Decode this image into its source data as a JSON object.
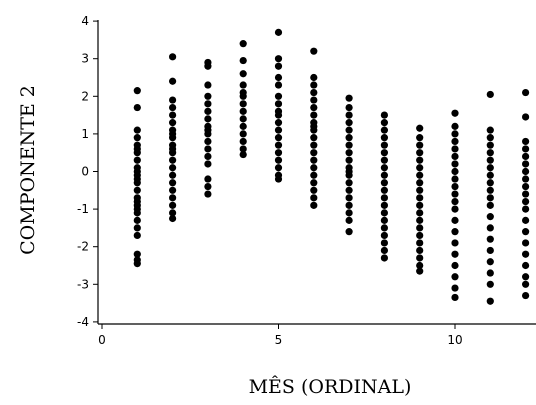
{
  "chart_data": {
    "type": "scatter",
    "title": "",
    "xlabel": "MÊS (ORDINAL)",
    "ylabel": "COMPONENTE 2",
    "xlim": [
      -0.2,
      12.2
    ],
    "ylim": [
      -4.1,
      4.1
    ],
    "x_ticks": [
      0,
      5,
      10
    ],
    "y_ticks": [
      4,
      3,
      2,
      1,
      0,
      -1,
      -2,
      -3,
      -4
    ],
    "grid": false,
    "legend": "none",
    "marker_color": "#000000",
    "series": [
      {
        "x": [
          1,
          1,
          1,
          1,
          1,
          1,
          1,
          1,
          1,
          1,
          1,
          1,
          1,
          1,
          1,
          1,
          1,
          1,
          1,
          1,
          1,
          1,
          1,
          1,
          1,
          2,
          2,
          2,
          2,
          2,
          2,
          2,
          2,
          2,
          2,
          2,
          2,
          2,
          2,
          2,
          2,
          2,
          2,
          2,
          2,
          2,
          3,
          3,
          3,
          3,
          3,
          3,
          3,
          3,
          3,
          3,
          3,
          3,
          3,
          3,
          3,
          3,
          3,
          4,
          4,
          4,
          4,
          4,
          4,
          4,
          4,
          4,
          4,
          4,
          4,
          4,
          4,
          5,
          5,
          5,
          5,
          5,
          5,
          5,
          5,
          5,
          5,
          5,
          5,
          5,
          5,
          5,
          5,
          5,
          5,
          6,
          6,
          6,
          6,
          6,
          6,
          6,
          6,
          6,
          6,
          6,
          6,
          6,
          6,
          6,
          6,
          6,
          6,
          6,
          6,
          7,
          7,
          7,
          7,
          7,
          7,
          7,
          7,
          7,
          7,
          7,
          7,
          7,
          7,
          7,
          7,
          7,
          7,
          7,
          8,
          8,
          8,
          8,
          8,
          8,
          8,
          8,
          8,
          8,
          8,
          8,
          8,
          8,
          8,
          8,
          8,
          8,
          8,
          8,
          9,
          9,
          9,
          9,
          9,
          9,
          9,
          9,
          9,
          9,
          9,
          9,
          9,
          9,
          9,
          9,
          9,
          9,
          9,
          9,
          10,
          10,
          10,
          10,
          10,
          10,
          10,
          10,
          10,
          10,
          10,
          10,
          10,
          10,
          10,
          10,
          10,
          10,
          10,
          10,
          10,
          11,
          11,
          11,
          11,
          11,
          11,
          11,
          11,
          11,
          11,
          11,
          11,
          11,
          11,
          11,
          11,
          11,
          11,
          11,
          11,
          12,
          12,
          12,
          12,
          12,
          12,
          12,
          12,
          12,
          12,
          12,
          12,
          12,
          12,
          12,
          12,
          12,
          12,
          12,
          12
        ],
        "y": [
          2.15,
          1.7,
          1.1,
          0.9,
          0.7,
          0.5,
          0.3,
          0.1,
          -0.1,
          -0.3,
          -0.5,
          -0.7,
          -0.9,
          -1.1,
          -1.3,
          -1.5,
          -1.7,
          -2.2,
          -2.35,
          -2.45,
          0.0,
          -0.2,
          -0.8,
          -1.0,
          0.6,
          3.05,
          2.4,
          1.9,
          1.7,
          1.5,
          1.3,
          1.1,
          0.9,
          0.7,
          0.5,
          0.3,
          0.1,
          -0.1,
          -0.3,
          -0.5,
          -0.7,
          -0.9,
          -1.1,
          -1.25,
          0.6,
          1.0,
          2.9,
          2.8,
          2.3,
          2.0,
          1.8,
          1.6,
          1.4,
          1.2,
          1.0,
          0.8,
          0.6,
          0.4,
          0.2,
          -0.2,
          -0.4,
          -0.6,
          1.1,
          3.4,
          2.95,
          2.6,
          2.3,
          2.0,
          1.8,
          1.6,
          1.4,
          1.2,
          1.0,
          0.8,
          0.6,
          0.45,
          2.1,
          3.7,
          3.0,
          2.8,
          2.5,
          2.3,
          2.0,
          1.8,
          1.5,
          1.3,
          1.1,
          0.9,
          0.7,
          0.5,
          0.3,
          0.1,
          -0.1,
          -0.2,
          1.6,
          3.2,
          2.5,
          2.3,
          2.1,
          1.9,
          1.7,
          1.5,
          1.3,
          1.1,
          0.9,
          0.7,
          0.5,
          0.3,
          0.1,
          -0.1,
          -0.3,
          -0.5,
          -0.7,
          -0.9,
          1.2,
          1.95,
          1.7,
          1.5,
          1.3,
          1.1,
          0.9,
          0.7,
          0.5,
          0.3,
          0.1,
          -0.1,
          -0.3,
          -0.5,
          -0.7,
          -0.9,
          -1.1,
          -1.3,
          -1.6,
          0.0,
          1.5,
          1.3,
          1.1,
          0.9,
          0.7,
          0.5,
          0.3,
          0.1,
          -0.1,
          -0.3,
          -0.5,
          -0.7,
          -0.9,
          -1.1,
          -1.3,
          -1.5,
          -1.7,
          -1.9,
          -2.1,
          -2.3,
          1.15,
          0.9,
          0.7,
          0.5,
          0.3,
          0.1,
          -0.1,
          -0.3,
          -0.5,
          -0.7,
          -0.9,
          -1.1,
          -1.3,
          -1.5,
          -1.7,
          -1.9,
          -2.1,
          -2.3,
          -2.5,
          -2.65,
          1.55,
          1.2,
          1.0,
          0.8,
          0.6,
          0.4,
          0.2,
          0.0,
          -0.2,
          -0.4,
          -0.6,
          -0.8,
          -1.0,
          -1.3,
          -1.6,
          -1.9,
          -2.2,
          -2.5,
          -2.8,
          -3.1,
          -3.35,
          2.05,
          1.1,
          0.9,
          0.7,
          0.5,
          0.3,
          0.1,
          -0.1,
          -0.3,
          -0.5,
          -0.7,
          -0.9,
          -1.2,
          -1.5,
          -1.8,
          -2.1,
          -2.4,
          -2.7,
          -3.0,
          -3.45,
          2.1,
          1.45,
          0.8,
          0.6,
          0.4,
          0.2,
          0.0,
          -0.2,
          -0.4,
          -0.6,
          -0.8,
          -1.0,
          -1.3,
          -1.6,
          -1.9,
          -2.2,
          -2.5,
          -2.8,
          -3.0,
          -3.3
        ]
      }
    ]
  }
}
